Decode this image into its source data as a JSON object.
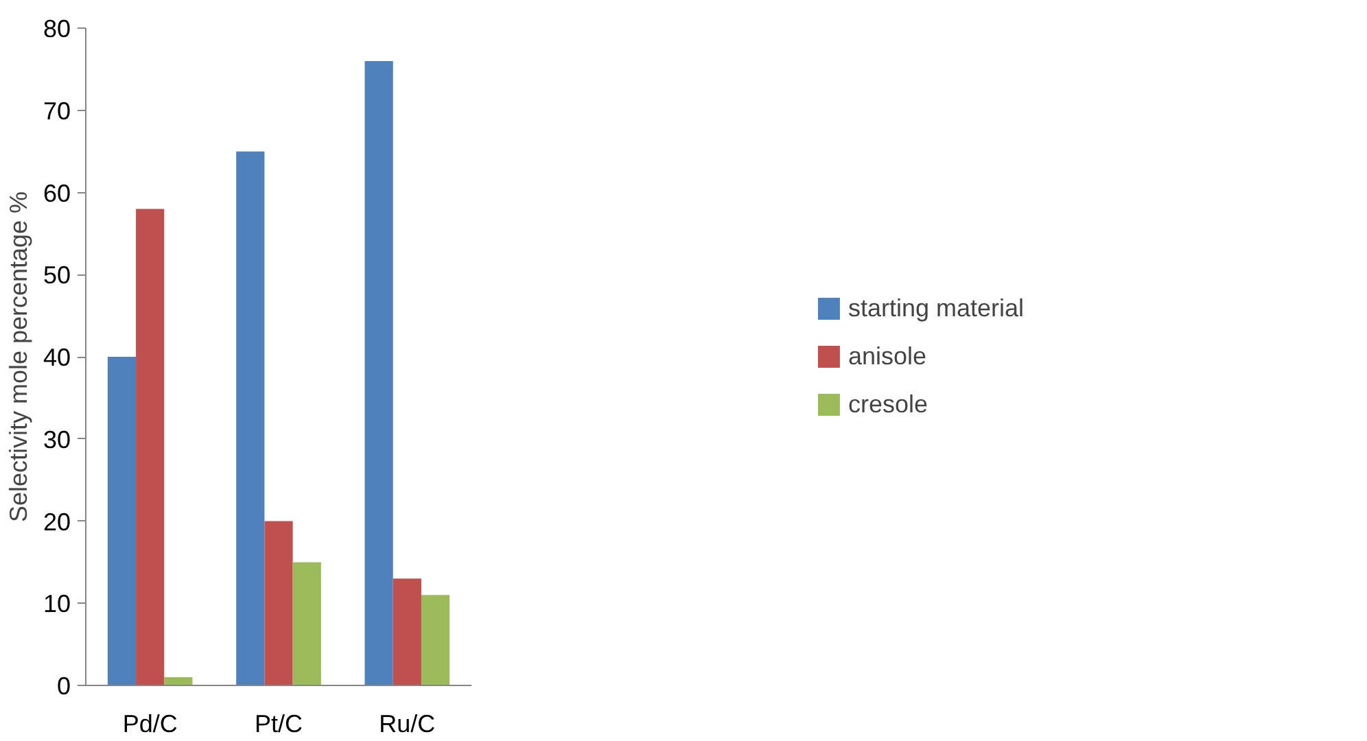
{
  "chart_data": {
    "type": "bar",
    "ylabel": "Selectivity mole percentage %",
    "categories": [
      "Pd/C",
      "Pt/C",
      "Ru/C"
    ],
    "series": [
      {
        "name": "starting material",
        "color": "#4f81bd",
        "values": [
          40,
          65,
          76
        ]
      },
      {
        "name": "anisole",
        "color": "#c0504d",
        "values": [
          58,
          20,
          13
        ]
      },
      {
        "name": "cresole",
        "color": "#9bbb59",
        "values": [
          1,
          15,
          11
        ]
      }
    ],
    "ylim": [
      0,
      80
    ],
    "yticks": [
      0,
      10,
      20,
      30,
      40,
      50,
      60,
      70,
      80
    ],
    "grid": false,
    "legend": "right"
  }
}
